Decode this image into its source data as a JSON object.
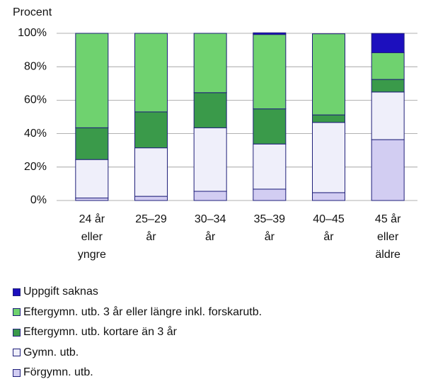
{
  "chart_data": {
    "type": "stacked_bar",
    "y_label": "Procent",
    "categories": [
      "24 år\neller\nyngre",
      "25–29\når",
      "30–34\når",
      "35–39\når",
      "40–45\når",
      "45 år\neller\näldre"
    ],
    "series": [
      {
        "name": "Förgymn. utb.",
        "color": "#d2cdf2",
        "values": [
          1.5,
          2.5,
          5.5,
          6.8,
          4.7,
          36.4
        ]
      },
      {
        "name": "Gymn. utb.",
        "color": "#efeffa",
        "values": [
          23,
          29,
          38,
          27,
          42,
          28.5
        ]
      },
      {
        "name": "Eftergymn. utb. kortare än 3 år",
        "color": "#3a9a4a",
        "values": [
          19,
          21.5,
          21,
          21,
          4.5,
          7.5
        ]
      },
      {
        "name": "Eftergymn. utb. 3 år eller längre inkl. forskarutb.",
        "color": "#6fd26f",
        "values": [
          56.5,
          47,
          35.5,
          44.5,
          48.5,
          16
        ]
      },
      {
        "name": "Uppgift saknas",
        "color": "#1c0fbe",
        "values": [
          0,
          0,
          0,
          1,
          0,
          11.5
        ]
      }
    ],
    "ylim": [
      0,
      100
    ],
    "yticks": [
      {
        "value": 0,
        "label": "0%"
      },
      {
        "value": 20,
        "label": "20%"
      },
      {
        "value": 40,
        "label": "40%"
      },
      {
        "value": 60,
        "label": "60%"
      },
      {
        "value": 80,
        "label": "80%"
      },
      {
        "value": 100,
        "label": "100%"
      }
    ],
    "grid": true
  }
}
